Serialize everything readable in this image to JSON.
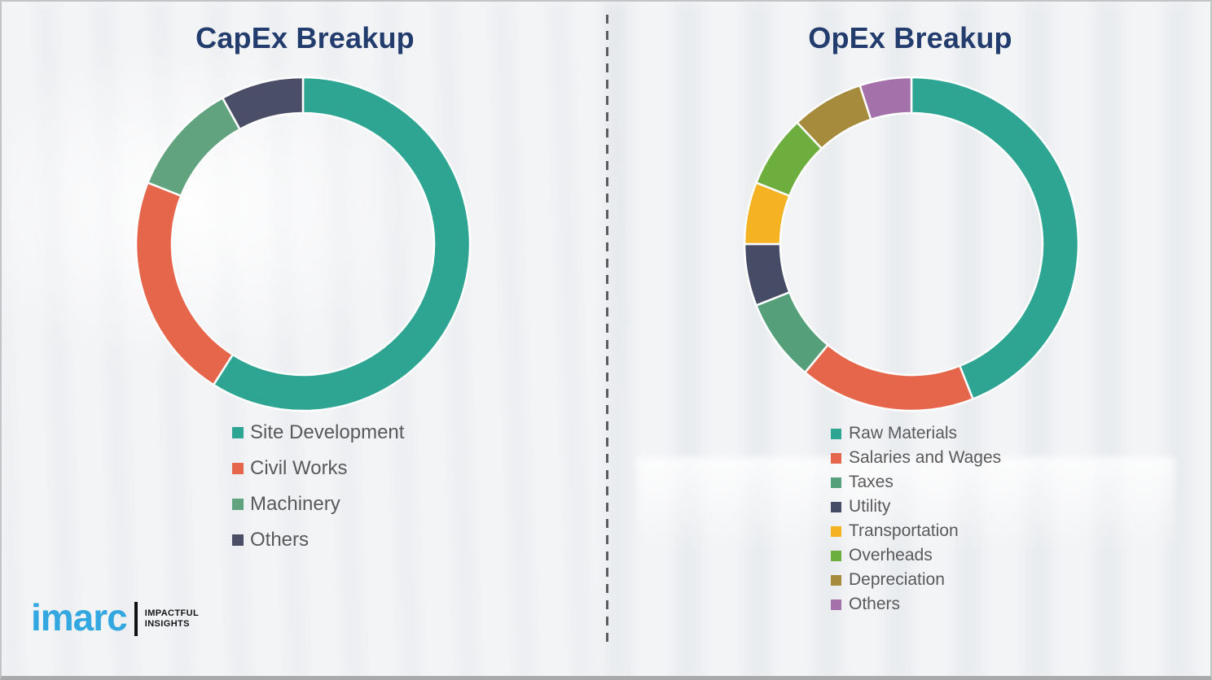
{
  "page": {
    "background_color": "#f3f4f6",
    "border_color": "#c3c4c6",
    "divider": "vertical-dashed-line",
    "divider_color": "#5c5c5e"
  },
  "chart_data": [
    {
      "type": "pie",
      "subtype": "donut",
      "title": "CapEx Breakup",
      "categories": [
        "Site Development",
        "Civil Works",
        "Machinery",
        "Others"
      ],
      "values": [
        59,
        22,
        11,
        8
      ],
      "colors": [
        "#2ea492",
        "#e6664c",
        "#62a37f",
        "#4a4e67"
      ],
      "value_labels_shown": false,
      "values_are_estimated_percent": true,
      "start_angle_deg": 0,
      "clockwise": true,
      "legend_position": "below-chart-left",
      "title_color": "#223c6d",
      "legend_text_color": "#595959"
    },
    {
      "type": "pie",
      "subtype": "donut",
      "title": "OpEx Breakup",
      "categories": [
        "Raw Materials",
        "Salaries and Wages",
        "Taxes",
        "Utility",
        "Transportation",
        "Overheads",
        "Depreciation",
        "Others"
      ],
      "values": [
        44,
        17,
        8,
        6,
        6,
        7,
        7,
        5
      ],
      "colors": [
        "#2ea492",
        "#e6664c",
        "#55a07b",
        "#474c66",
        "#f5b324",
        "#6eae3f",
        "#a78b3c",
        "#a471ab"
      ],
      "value_labels_shown": false,
      "values_are_estimated_percent": true,
      "start_angle_deg": 0,
      "clockwise": true,
      "legend_position": "below-chart-left",
      "title_color": "#223c6d",
      "legend_text_color": "#595959"
    }
  ],
  "logo": {
    "brand": "imarc",
    "tagline_line1": "IMPACTFUL",
    "tagline_line2": "INSIGHTS",
    "brand_color": "#33a7df",
    "tagline_color": "#141414"
  }
}
